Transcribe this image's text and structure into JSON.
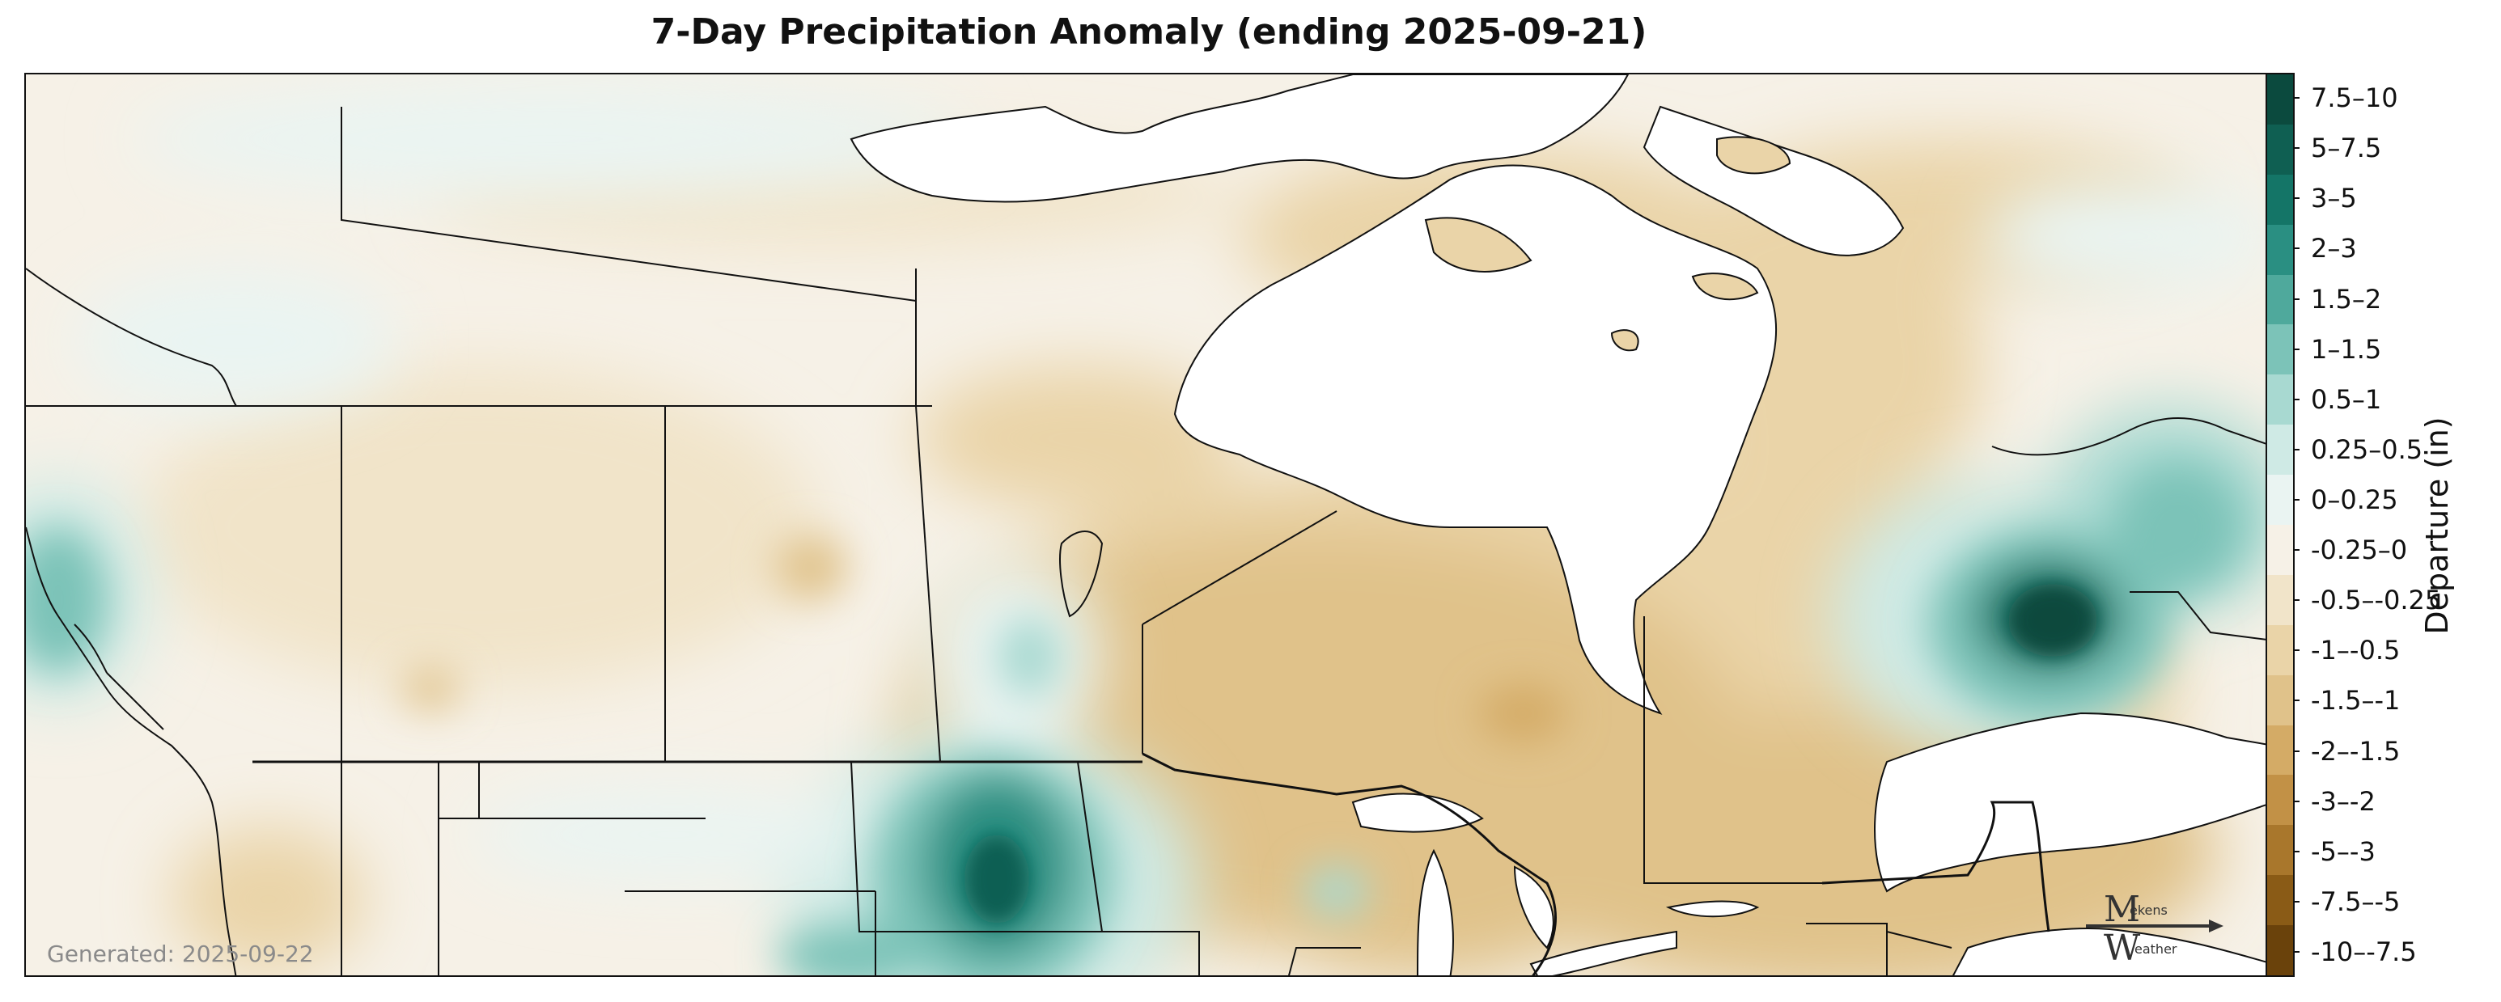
{
  "title": "7-Day Precipitation Anomaly (ending 2025-09-21)",
  "generated": "Generated: 2025-09-22",
  "colorbar": {
    "label": "Departure (in)",
    "bins": [
      {
        "label": "7.5–10",
        "color": "#0b4a3e"
      },
      {
        "label": "5–7.5",
        "color": "#0f5f52"
      },
      {
        "label": "3–5",
        "color": "#147567"
      },
      {
        "label": "2–3",
        "color": "#2a8f82"
      },
      {
        "label": "1.5–2",
        "color": "#4fa99c"
      },
      {
        "label": "1–1.5",
        "color": "#7cc3b8"
      },
      {
        "label": "0.5–1",
        "color": "#a8d9d1"
      },
      {
        "label": "0.25–0.5",
        "color": "#cfeae5"
      },
      {
        "label": "0–0.25",
        "color": "#eaf4f2"
      },
      {
        "label": "-0.25–0",
        "color": "#f6f1e7"
      },
      {
        "label": "-0.5–-0.25",
        "color": "#f1e4c9"
      },
      {
        "label": "-1–-0.5",
        "color": "#ead4a8"
      },
      {
        "label": "-1.5–-1",
        "color": "#e0c28a"
      },
      {
        "label": "-2–-1.5",
        "color": "#d4ab66"
      },
      {
        "label": "-3–-2",
        "color": "#c29146"
      },
      {
        "label": "-5–-3",
        "color": "#a9772c"
      },
      {
        "label": "-7.5–-5",
        "color": "#8a5b16"
      },
      {
        "label": "-10–-7.5",
        "color": "#6a420b"
      }
    ]
  },
  "logo": {
    "top": "ekens",
    "bottom": "eather"
  }
}
